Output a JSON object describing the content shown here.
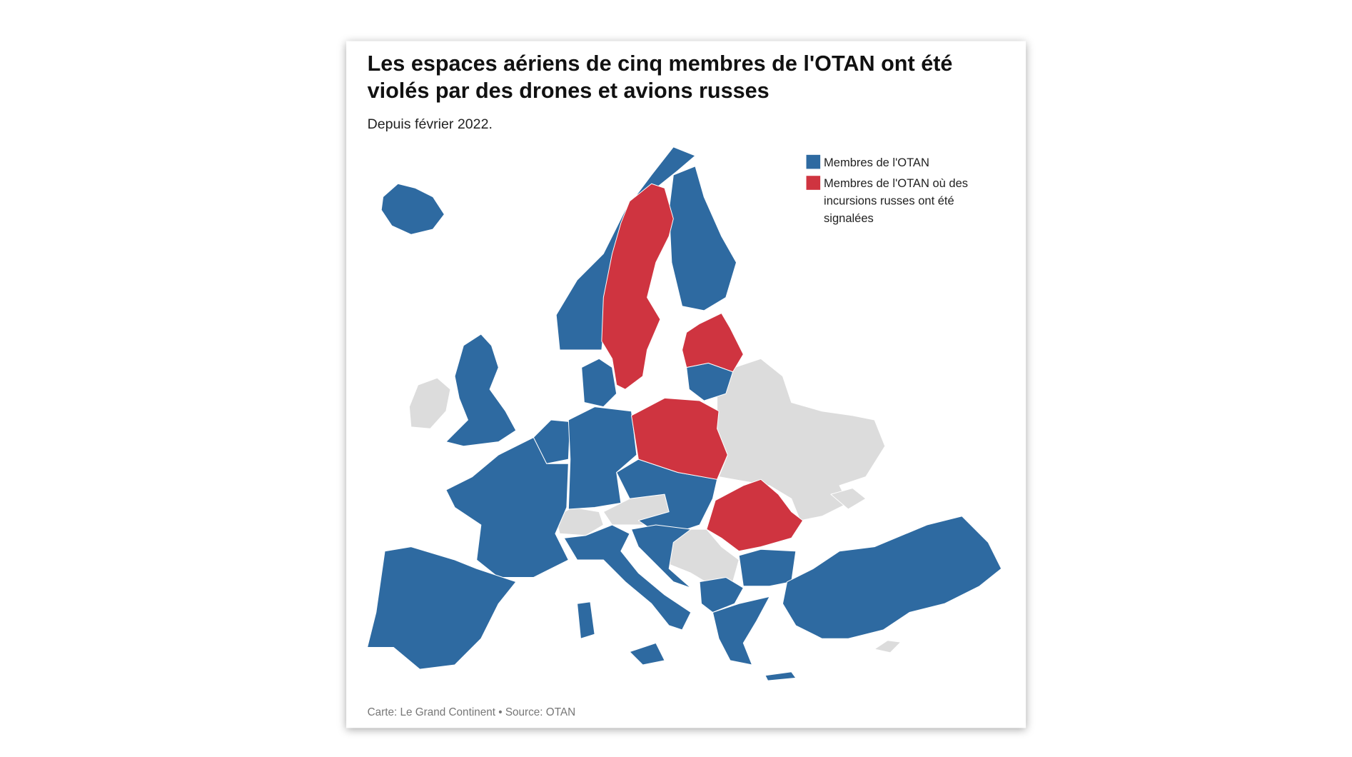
{
  "header": {
    "title_lines": [
      "Les espaces aériens de cinq membres de l'OTAN ont été",
      "violés par des drones et avions russes"
    ],
    "subtitle": "Depuis février 2022."
  },
  "legend": [
    {
      "label": "Membres de l'OTAN",
      "color": "#2e6aa1"
    },
    {
      "label_lines": [
        "Membres de l'OTAN où des",
        "incursions russes ont été",
        "signalées"
      ],
      "color": "#cf3440"
    }
  ],
  "other_color": "#dcdcdc",
  "footer": {
    "source": "Carte: Le Grand Continent • Source: OTAN"
  }
}
